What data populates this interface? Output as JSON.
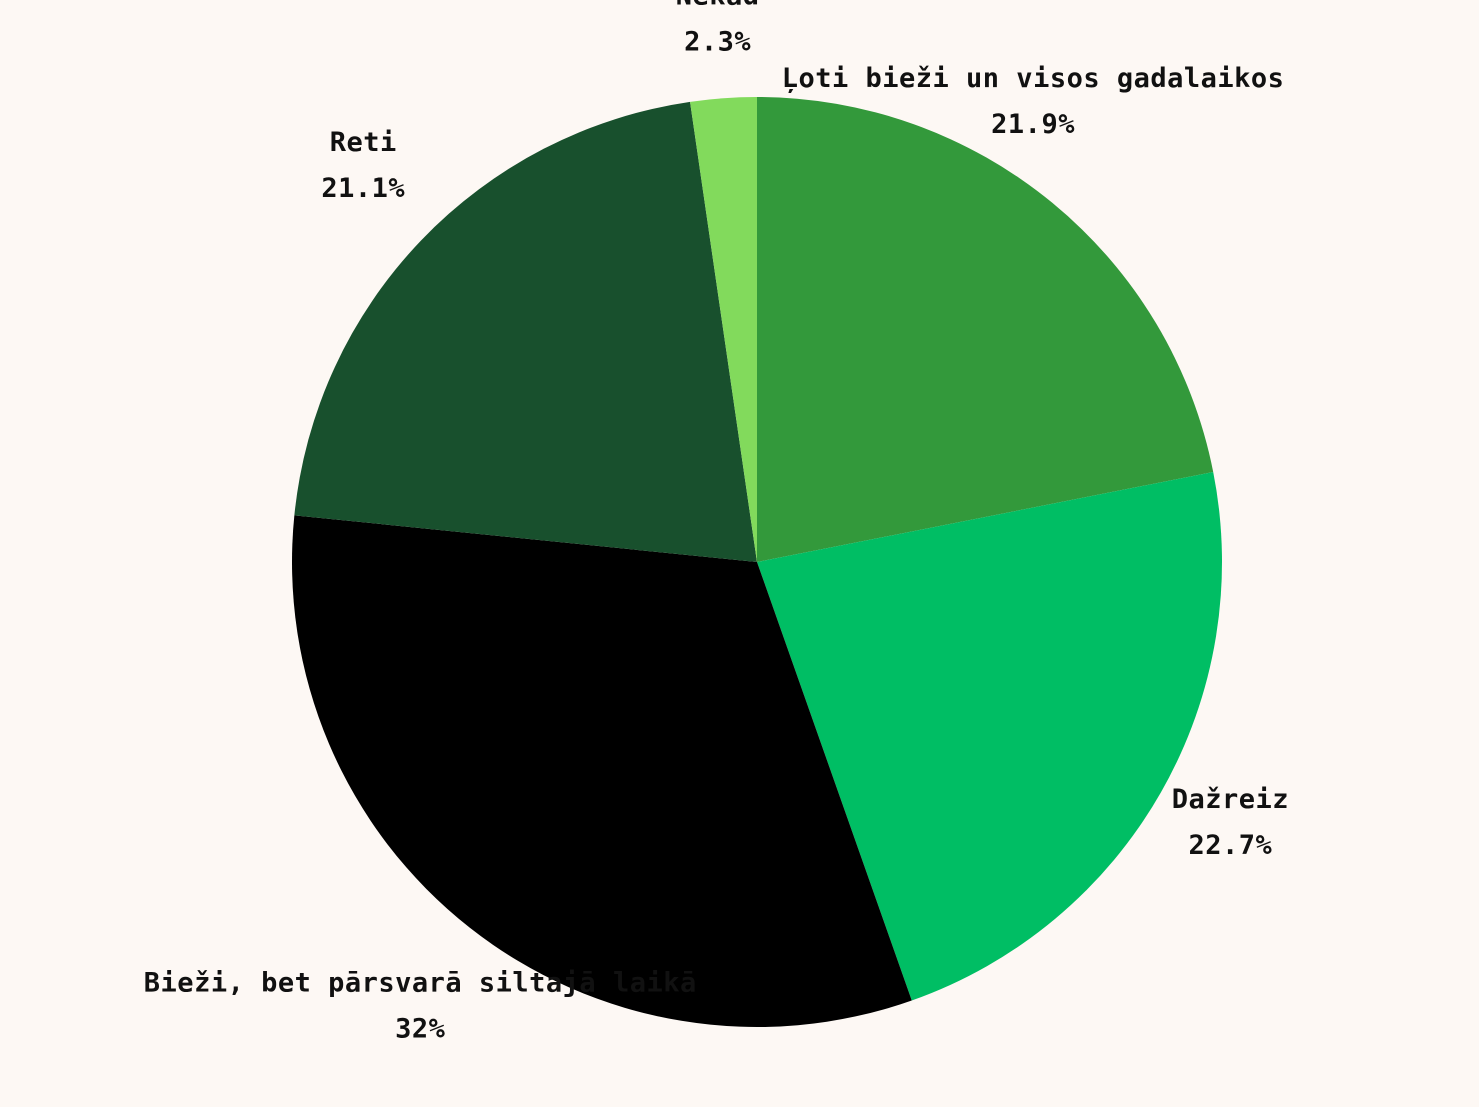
{
  "chart_data": {
    "type": "pie",
    "slices": [
      {
        "label": "Ļoti bieži un visos gadalaikos",
        "value": 21.9,
        "value_label": "21.9%",
        "color": "#33993b"
      },
      {
        "label": "Dažreiz",
        "value": 22.7,
        "value_label": "22.7%",
        "color": "#00be64"
      },
      {
        "label": "Bieži, bet pārsvarā siltajā laikā",
        "value": 32,
        "value_label": "32%",
        "color": "#000000"
      },
      {
        "label": "Reti",
        "value": 21.1,
        "value_label": "21.1%",
        "color": "#18502d"
      },
      {
        "label": "Nekad",
        "value": 2.3,
        "value_label": "2.3%",
        "color": "#82da5c"
      }
    ],
    "start_angle": "12 o'clock",
    "direction": "clockwise",
    "legend": "none"
  },
  "colors": {
    "background": "#fdf8f4",
    "label_text": "#111111"
  }
}
